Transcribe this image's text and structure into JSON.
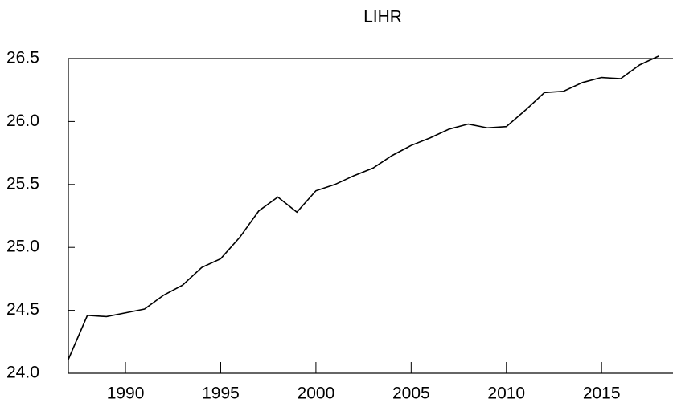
{
  "chart_data": {
    "type": "line",
    "title": "LIHR",
    "x": [
      1987,
      1988,
      1989,
      1990,
      1991,
      1992,
      1993,
      1994,
      1995,
      1996,
      1997,
      1998,
      1999,
      2000,
      2001,
      2002,
      2003,
      2004,
      2005,
      2006,
      2007,
      2008,
      2009,
      2010,
      2011,
      2012,
      2013,
      2014,
      2015,
      2016,
      2017,
      2018
    ],
    "series": [
      {
        "name": "LIHR",
        "color": "#000000",
        "values": [
          24.11,
          24.46,
          24.45,
          24.48,
          24.51,
          24.62,
          24.7,
          24.84,
          24.91,
          25.08,
          25.29,
          25.4,
          25.28,
          25.45,
          25.5,
          25.57,
          25.63,
          25.73,
          25.81,
          25.87,
          25.94,
          25.98,
          25.95,
          25.96,
          26.09,
          26.23,
          26.24,
          26.31,
          26.35,
          26.34,
          26.45,
          26.52
        ]
      }
    ],
    "xlim": [
      1987,
      2018.75
    ],
    "xticks": [
      1990,
      1995,
      2000,
      2005,
      2010,
      2015
    ],
    "ylim": [
      24.0,
      26.5
    ],
    "yticks": [
      {
        "value": 24.0,
        "label": "24.0"
      },
      24.5,
      {
        "value": 25.0,
        "label": "25.0"
      },
      25.5,
      {
        "value": 26.0,
        "label": "26.0"
      },
      26.5
    ],
    "grid": false
  }
}
